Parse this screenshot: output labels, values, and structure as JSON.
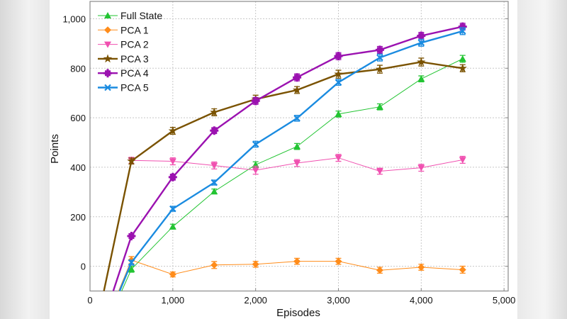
{
  "chart_data": {
    "type": "line",
    "title": "",
    "xlabel": "Episodes",
    "ylabel": "Points",
    "xlim": [
      0,
      5050
    ],
    "ylim": [
      -100,
      1070
    ],
    "xticks": [
      0,
      1000,
      2000,
      3000,
      4000,
      5000
    ],
    "xtick_labels": [
      "0",
      "1,000",
      "2,000",
      "3,000",
      "4,000",
      "5,000"
    ],
    "yticks": [
      0,
      200,
      400,
      600,
      800,
      1000
    ],
    "ytick_labels": [
      "0",
      "200",
      "400",
      "600",
      "800",
      "1,000"
    ],
    "grid": true,
    "legend_position": "top-left",
    "x": [
      0,
      500,
      1000,
      1500,
      2000,
      2500,
      3000,
      3500,
      4000,
      4500
    ],
    "series": [
      {
        "name": "Full State",
        "color": "#22c432",
        "marker": "triangle-up",
        "thick": false,
        "values": [
          -388,
          -12,
          160,
          302,
          410,
          484,
          615,
          644,
          757,
          838
        ],
        "error": [
          0,
          12,
          10,
          10,
          12,
          12,
          12,
          12,
          12,
          14
        ]
      },
      {
        "name": "PCA 1",
        "color": "#ff8c1a",
        "marker": "diamond",
        "thick": false,
        "values": [
          -380,
          25,
          -33,
          5,
          8,
          20,
          20,
          -16,
          -4,
          -14
        ],
        "error": [
          0,
          14,
          10,
          14,
          12,
          12,
          12,
          12,
          12,
          14
        ]
      },
      {
        "name": "PCA 2",
        "color": "#f050b0",
        "marker": "triangle-down",
        "thick": false,
        "values": [
          -370,
          428,
          424,
          407,
          388,
          417,
          438,
          384,
          398,
          430
        ],
        "error": [
          0,
          12,
          14,
          14,
          16,
          14,
          14,
          12,
          14,
          14
        ]
      },
      {
        "name": "PCA 3",
        "color": "#7a5200",
        "marker": "star",
        "thick": true,
        "values": [
          -365,
          425,
          547,
          622,
          675,
          712,
          776,
          796,
          825,
          800
        ],
        "error": [
          0,
          12,
          14,
          14,
          16,
          14,
          16,
          16,
          16,
          14
        ]
      },
      {
        "name": "PCA 4",
        "color": "#9b12b0",
        "marker": "plus-square",
        "thick": true,
        "values": [
          -385,
          122,
          360,
          548,
          668,
          763,
          849,
          874,
          931,
          968
        ],
        "error": [
          0,
          10,
          12,
          12,
          14,
          14,
          14,
          14,
          14,
          14
        ]
      },
      {
        "name": "PCA 5",
        "color": "#1a8be0",
        "marker": "x",
        "thick": true,
        "values": [
          -390,
          15,
          232,
          338,
          493,
          598,
          743,
          843,
          903,
          950
        ],
        "error": [
          0,
          10,
          10,
          10,
          12,
          12,
          12,
          14,
          14,
          14
        ]
      }
    ]
  }
}
